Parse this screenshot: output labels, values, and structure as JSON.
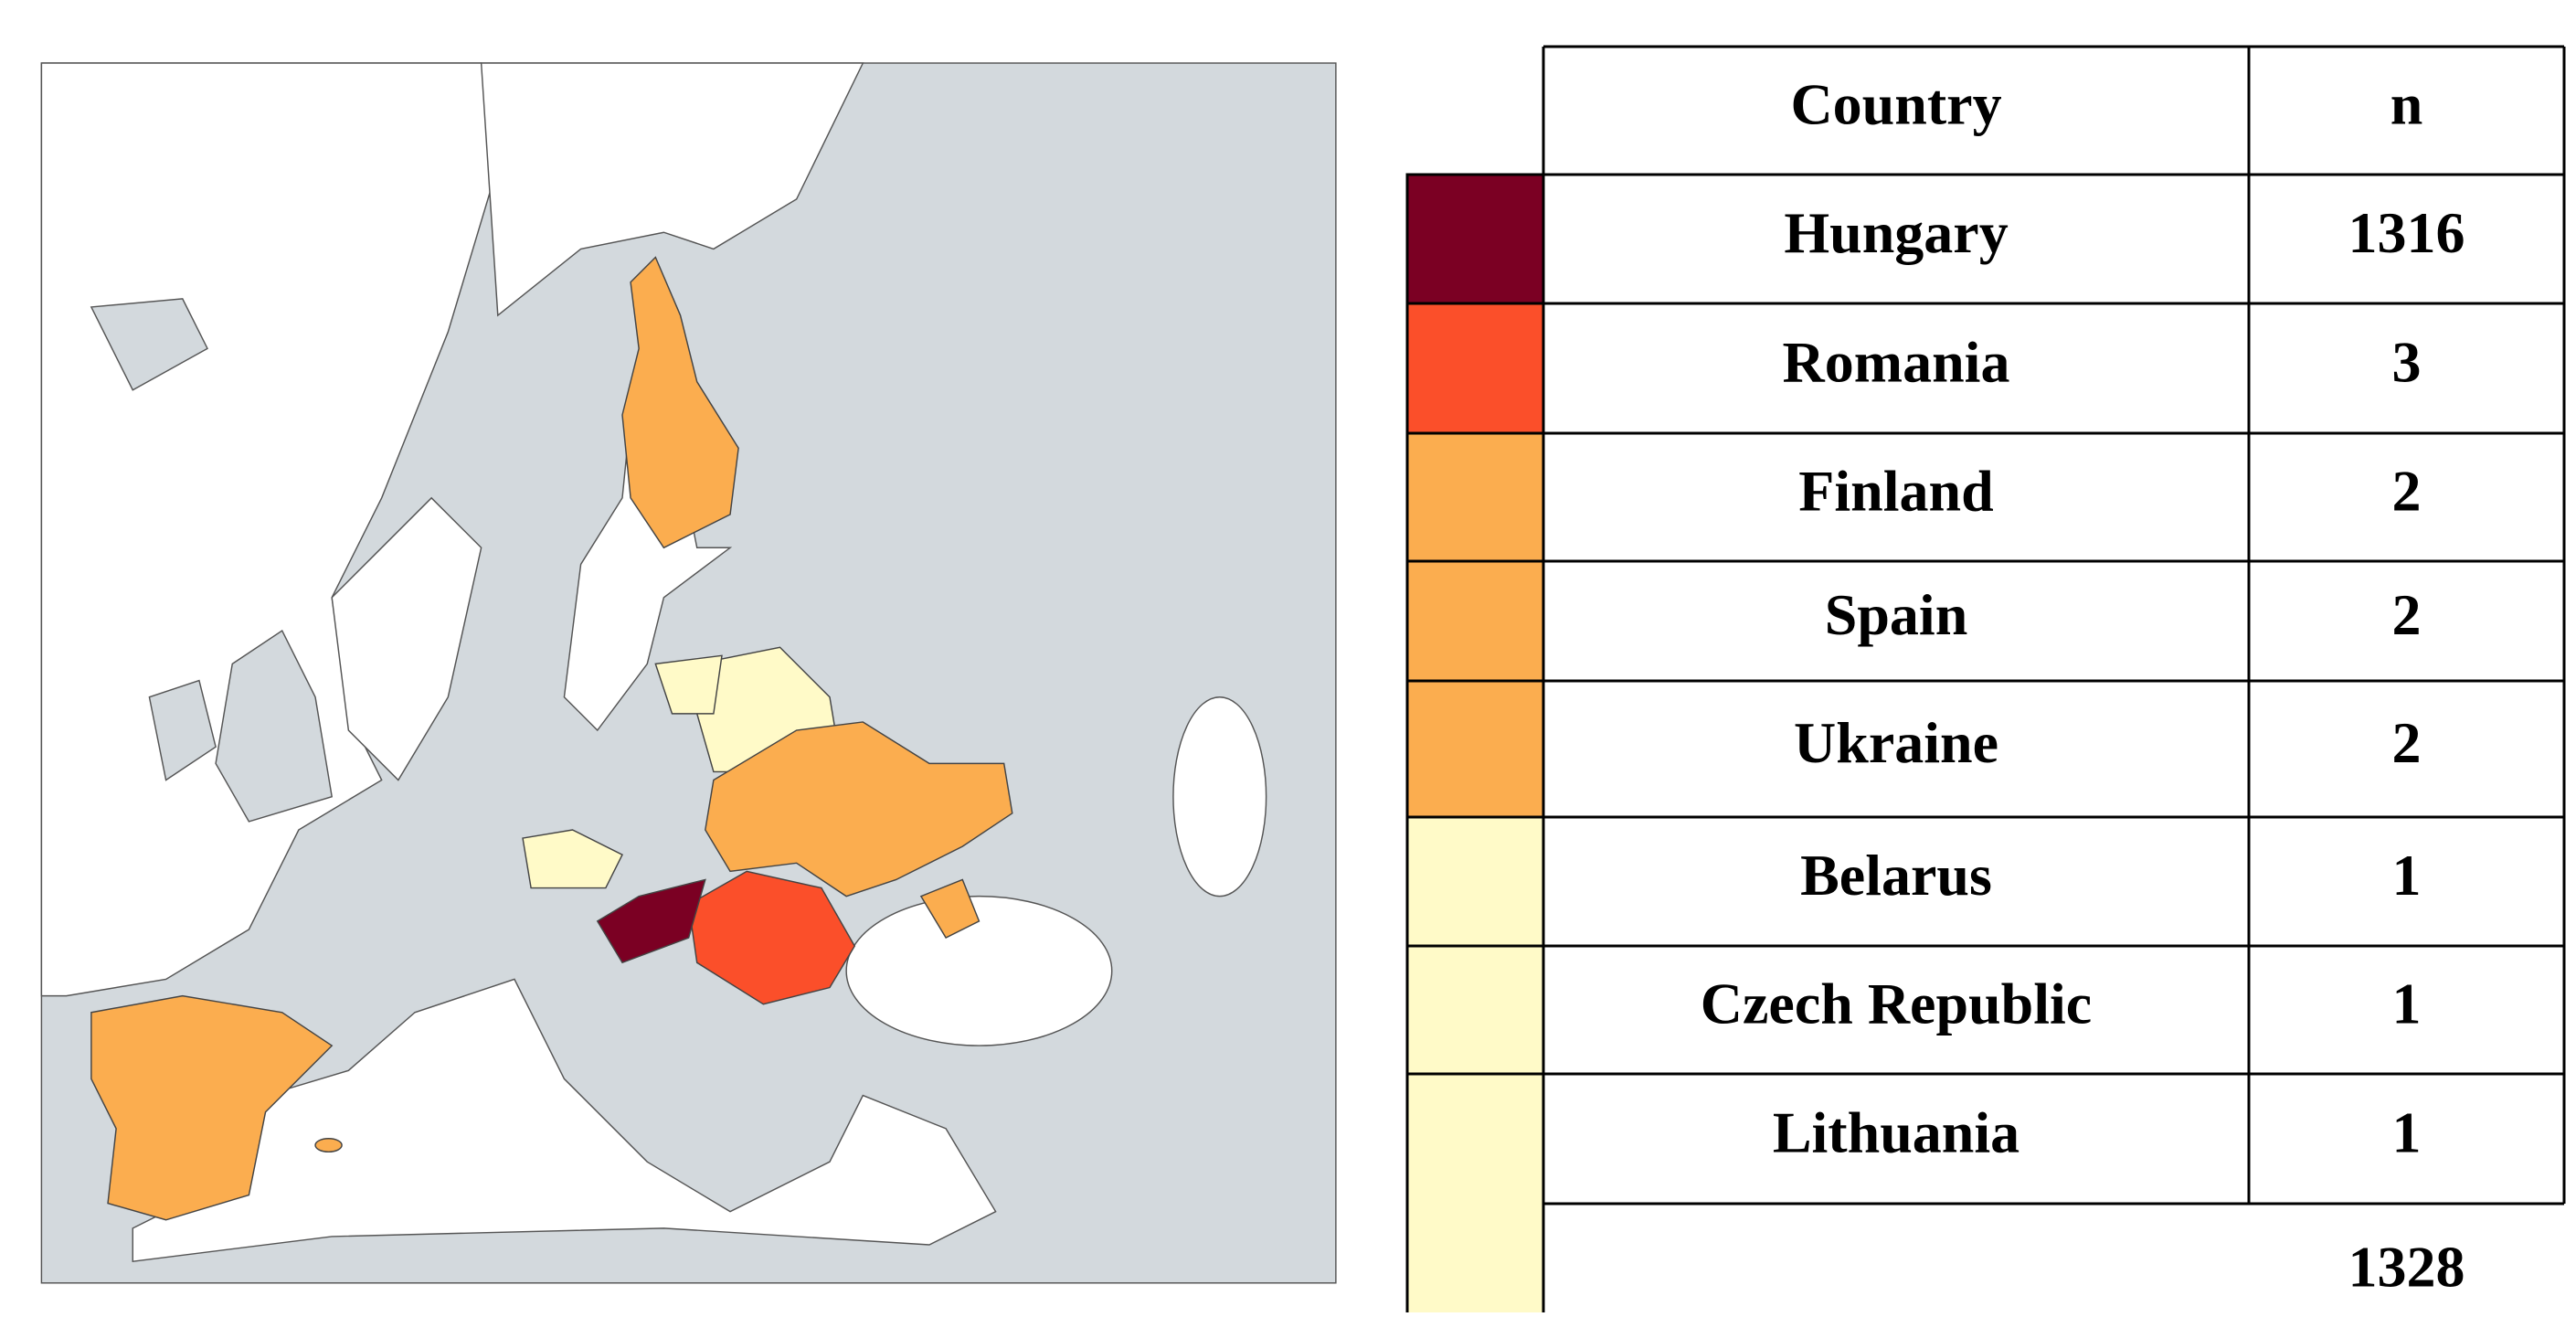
{
  "table": {
    "header": [
      "Country",
      "n"
    ],
    "rows": [
      {
        "country": "Hungary",
        "n": 1316,
        "color": "#7b0023"
      },
      {
        "country": "Romania",
        "n": 3,
        "color": "#fb4f2a"
      },
      {
        "country": "Finland",
        "n": 2,
        "color": "#fbad4f"
      },
      {
        "country": "Spain",
        "n": 2,
        "color": "#fbad4f"
      },
      {
        "country": "Ukraine",
        "n": 2,
        "color": "#fbad4f"
      },
      {
        "country": "Belarus",
        "n": 1,
        "color": "#fffac8"
      },
      {
        "country": "Czech Republic",
        "n": 1,
        "color": "#fffac8"
      },
      {
        "country": "Lithuania",
        "n": 1,
        "color": "#fffac8"
      }
    ],
    "total": 1328
  }
}
